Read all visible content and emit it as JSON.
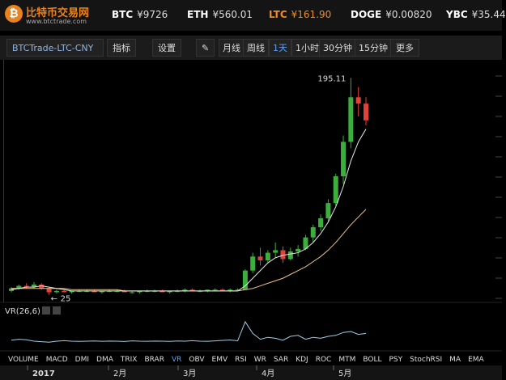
{
  "header": {
    "logo": "比特币交易网",
    "url": "www.btctrade.com",
    "tickers": [
      {
        "symbol": "BTC",
        "price": "¥9726"
      },
      {
        "symbol": "ETH",
        "price": "¥560.01"
      },
      {
        "symbol": "LTC",
        "price": "¥161.90"
      },
      {
        "symbol": "DOGE",
        "price": "¥0.00820"
      },
      {
        "symbol": "YBC",
        "price": "¥35.44"
      }
    ]
  },
  "toolbar": {
    "pair": "BTCTrade-LTC-CNY",
    "indicator": "指标",
    "settings": "设置",
    "periods": [
      "月线",
      "周线",
      "1天",
      "1小时",
      "30分钟",
      "15分钟"
    ],
    "more": "更多"
  },
  "chart_data": {
    "type": "candlestick",
    "ylim": [
      0,
      210
    ],
    "candles": [
      [
        28,
        31,
        27,
        30
      ],
      [
        30,
        33,
        29,
        32
      ],
      [
        32,
        34,
        30,
        31
      ],
      [
        31,
        35,
        30,
        33
      ],
      [
        33,
        34,
        29,
        30
      ],
      [
        30,
        31,
        25,
        27
      ],
      [
        27,
        29,
        26,
        28
      ],
      [
        28,
        29,
        27,
        27
      ],
      [
        27,
        28,
        26,
        28
      ],
      [
        28,
        29,
        27,
        28
      ],
      [
        28,
        29,
        27,
        28
      ],
      [
        28,
        29,
        27,
        27
      ],
      [
        27,
        28,
        26,
        28
      ],
      [
        28,
        29,
        27,
        28
      ],
      [
        28,
        29,
        27,
        28
      ],
      [
        28,
        29,
        27,
        27
      ],
      [
        27,
        28,
        26,
        27
      ],
      [
        27,
        28,
        26,
        28
      ],
      [
        28,
        29,
        27,
        28
      ],
      [
        28,
        29,
        27,
        28
      ],
      [
        28,
        29,
        27,
        27
      ],
      [
        27,
        28,
        26,
        28
      ],
      [
        28,
        29,
        27,
        28
      ],
      [
        28,
        30,
        27,
        29
      ],
      [
        29,
        30,
        28,
        28
      ],
      [
        28,
        29,
        27,
        28
      ],
      [
        28,
        29,
        27,
        29
      ],
      [
        29,
        30,
        28,
        29
      ],
      [
        29,
        30,
        28,
        28
      ],
      [
        28,
        30,
        27,
        29
      ],
      [
        29,
        30,
        28,
        29
      ],
      [
        29,
        45,
        29,
        44
      ],
      [
        44,
        58,
        42,
        55
      ],
      [
        55,
        62,
        48,
        52
      ],
      [
        52,
        60,
        50,
        58
      ],
      [
        58,
        66,
        54,
        60
      ],
      [
        60,
        63,
        50,
        53
      ],
      [
        53,
        62,
        52,
        59
      ],
      [
        59,
        64,
        55,
        61
      ],
      [
        61,
        72,
        60,
        70
      ],
      [
        70,
        80,
        66,
        78
      ],
      [
        78,
        88,
        75,
        85
      ],
      [
        85,
        100,
        82,
        97
      ],
      [
        97,
        120,
        95,
        118
      ],
      [
        118,
        150,
        112,
        145
      ],
      [
        145,
        195.11,
        140,
        180
      ],
      [
        180,
        188,
        165,
        175
      ],
      [
        175,
        180,
        158,
        161.9
      ]
    ],
    "ma_fast": [
      29,
      30,
      31,
      31,
      32,
      31,
      30,
      29,
      28,
      28,
      28,
      28,
      28,
      28,
      28,
      28,
      28,
      28,
      28,
      28,
      28,
      28,
      28,
      28,
      28,
      28,
      28,
      28,
      28,
      28,
      28,
      32,
      38,
      44,
      50,
      54,
      56,
      57,
      58,
      61,
      66,
      73,
      82,
      94,
      110,
      130,
      145,
      155
    ],
    "ma_slow": [
      30,
      30,
      30,
      30,
      30,
      30,
      30,
      30,
      29,
      29,
      29,
      29,
      29,
      29,
      29,
      28,
      28,
      28,
      28,
      28,
      28,
      28,
      28,
      28,
      28,
      28,
      28,
      28,
      28,
      28,
      28,
      29,
      30,
      32,
      34,
      36,
      38,
      41,
      44,
      47,
      51,
      55,
      60,
      66,
      73,
      80,
      86,
      92
    ],
    "up_color": "#3cae3c",
    "down_color": "#e0413a",
    "ma_fast_color": "#e8e8e8",
    "ma_slow_color": "#e8c48a",
    "vr_label": "VR(26,6)",
    "vr_lim": [
      0,
      400
    ],
    "vr": [
      110,
      120,
      115,
      100,
      95,
      90,
      100,
      105,
      100,
      98,
      100,
      102,
      99,
      101,
      100,
      97,
      103,
      100,
      99,
      101,
      100,
      98,
      102,
      100,
      105,
      100,
      99,
      103,
      108,
      112,
      104,
      300,
      180,
      120,
      140,
      130,
      110,
      150,
      160,
      120,
      140,
      130,
      150,
      160,
      190,
      200,
      170,
      180
    ],
    "indicators": [
      "VOLUME",
      "MACD",
      "DMI",
      "DMA",
      "TRIX",
      "BRAR",
      "VR",
      "OBV",
      "EMV",
      "RSI",
      "WR",
      "SAR",
      "KDJ",
      "ROC",
      "MTM",
      "BOLL",
      "PSY",
      "StochRSI",
      "MA",
      "EMA"
    ],
    "active_indicator": 6,
    "months": [
      "2017",
      "2月",
      "3月",
      "4月",
      "5月"
    ]
  }
}
